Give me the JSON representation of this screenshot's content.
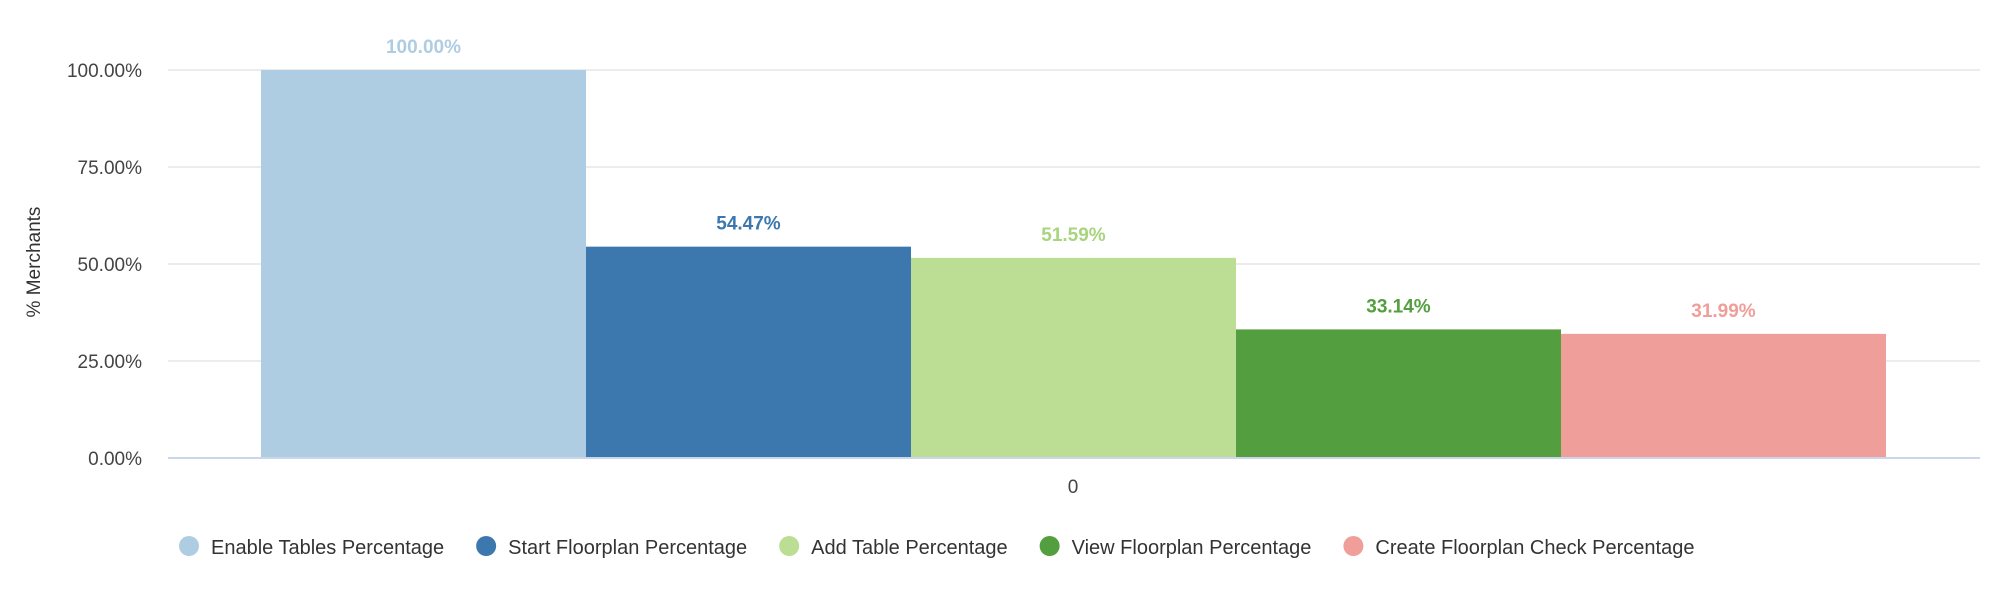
{
  "chart_data": {
    "type": "bar",
    "ylabel": "% Merchants",
    "ylim": [
      0,
      100
    ],
    "yticks": [
      "0.00%",
      "25.00%",
      "50.00%",
      "75.00%",
      "100.00%"
    ],
    "categories": [
      "0"
    ],
    "grid": true,
    "legend_position": "bottom",
    "series": [
      {
        "name": "Enable Tables Percentage",
        "values": [
          100.0
        ],
        "label": "100.00%",
        "color": "#aecde2",
        "label_color": "#aecde2"
      },
      {
        "name": "Start Floorplan Percentage",
        "values": [
          54.47
        ],
        "label": "54.47%",
        "color": "#3c78ae",
        "label_color": "#3c78ae"
      },
      {
        "name": "Add Table Percentage",
        "values": [
          51.59
        ],
        "label": "51.59%",
        "color": "#bcde94",
        "label_color": "#a8d47e"
      },
      {
        "name": "View Floorplan Percentage",
        "values": [
          33.14
        ],
        "label": "33.14%",
        "color": "#539e3e",
        "label_color": "#539e3e"
      },
      {
        "name": "Create Floorplan Check Percentage",
        "values": [
          31.99
        ],
        "label": "31.99%",
        "color": "#f09e99",
        "label_color": "#f09e99"
      }
    ]
  }
}
